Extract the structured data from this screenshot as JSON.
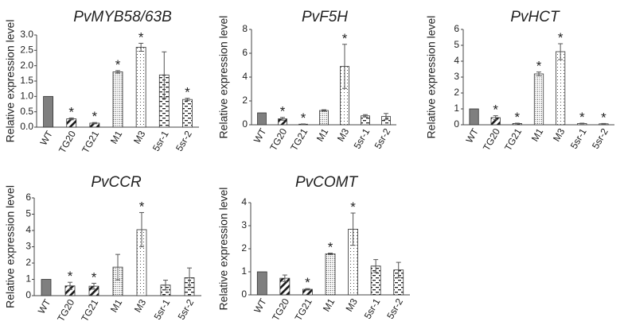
{
  "figure": {
    "bar_fill_colors": {
      "solid": "#7f7f7f",
      "pattern": "#ffffff"
    },
    "stroke_color": "#333333"
  },
  "chart_data": [
    {
      "type": "bar",
      "title": "PvMYB58/63B",
      "ylabel": "Relative expression level",
      "xlabel": "",
      "categories": [
        "WT",
        "TG20",
        "TG21",
        "M1",
        "M3",
        "5sr-1",
        "5sr-2"
      ],
      "values": [
        1.0,
        0.27,
        0.13,
        1.8,
        2.6,
        1.7,
        0.9
      ],
      "errors": [
        0,
        0.03,
        0.02,
        0.04,
        0.13,
        0.75,
        0.04
      ],
      "significant": [
        false,
        true,
        true,
        true,
        true,
        false,
        true
      ],
      "patterns": [
        "solid",
        "wide-diagonal",
        "wide-diagonal",
        "fine-dots",
        "sparse-dots",
        "horizontal-dashes",
        "horizontal-dashes"
      ],
      "ylim": [
        0,
        3.0
      ],
      "yticks": [
        "0.0",
        "0.5",
        "1.0",
        "1.5",
        "2.0",
        "2.5",
        "3.0"
      ]
    },
    {
      "type": "bar",
      "title": "PvF5H",
      "ylabel": "Relative expression level",
      "xlabel": "",
      "categories": [
        "WT",
        "TG20",
        "TG21",
        "M1",
        "M3",
        "5sr-1",
        "5sr-2"
      ],
      "values": [
        1.0,
        0.5,
        0.05,
        1.2,
        4.9,
        0.75,
        0.7
      ],
      "errors": [
        0,
        0.12,
        0.02,
        0.06,
        1.85,
        0.1,
        0.25
      ],
      "significant": [
        false,
        true,
        true,
        false,
        true,
        false,
        false
      ],
      "patterns": [
        "solid",
        "wide-diagonal",
        "wide-diagonal",
        "fine-dots",
        "sparse-dots",
        "horizontal-dashes",
        "horizontal-dashes"
      ],
      "ylim": [
        0,
        8
      ],
      "yticks": [
        "0",
        "2",
        "4",
        "6",
        "8"
      ]
    },
    {
      "type": "bar",
      "title": "PvHCT",
      "ylabel": "Relative expression level",
      "xlabel": "",
      "categories": [
        "WT",
        "TG20",
        "TG21",
        "M1",
        "M3",
        "5sr-1",
        "5sr-2"
      ],
      "values": [
        1.0,
        0.45,
        0.08,
        3.2,
        4.6,
        0.08,
        0.06
      ],
      "errors": [
        0,
        0.12,
        0.02,
        0.12,
        0.5,
        0.02,
        0.02
      ],
      "significant": [
        false,
        true,
        true,
        true,
        true,
        true,
        true
      ],
      "patterns": [
        "solid",
        "wide-diagonal",
        "wide-diagonal",
        "fine-dots",
        "sparse-dots",
        "horizontal-dashes",
        "horizontal-dashes"
      ],
      "ylim": [
        0,
        6
      ],
      "yticks": [
        "0",
        "1",
        "2",
        "3",
        "4",
        "5",
        "6"
      ]
    },
    {
      "type": "bar",
      "title": "PvCCR",
      "ylabel": "Relative expression level",
      "xlabel": "",
      "categories": [
        "WT",
        "TG20",
        "TG21",
        "M1",
        "M3",
        "5sr-1",
        "5sr-2"
      ],
      "values": [
        1.0,
        0.6,
        0.58,
        1.75,
        4.05,
        0.65,
        1.1
      ],
      "errors": [
        0,
        0.22,
        0.18,
        0.78,
        1.05,
        0.3,
        0.6
      ],
      "significant": [
        false,
        true,
        true,
        false,
        true,
        false,
        false
      ],
      "patterns": [
        "solid",
        "wide-diagonal",
        "wide-diagonal",
        "fine-dots",
        "sparse-dots",
        "horizontal-dashes",
        "horizontal-dashes"
      ],
      "ylim": [
        0,
        6
      ],
      "yticks": [
        "0",
        "1",
        "2",
        "3",
        "4",
        "5",
        "6"
      ]
    },
    {
      "type": "bar",
      "title": "PvCOMT",
      "ylabel": "Relative expression level",
      "xlabel": "",
      "categories": [
        "WT",
        "TG20",
        "TG21",
        "M1",
        "M3",
        "5sr-1",
        "5sr-2"
      ],
      "values": [
        1.0,
        0.72,
        0.24,
        1.78,
        2.85,
        1.25,
        1.08
      ],
      "errors": [
        0,
        0.14,
        0.03,
        0.03,
        0.7,
        0.28,
        0.33
      ],
      "significant": [
        false,
        false,
        true,
        true,
        true,
        false,
        false
      ],
      "patterns": [
        "solid",
        "wide-diagonal",
        "wide-diagonal",
        "fine-dots",
        "sparse-dots",
        "horizontal-dashes",
        "horizontal-dashes"
      ],
      "ylim": [
        0,
        4
      ],
      "yticks": [
        "0",
        "1",
        "2",
        "3",
        "4"
      ]
    }
  ]
}
